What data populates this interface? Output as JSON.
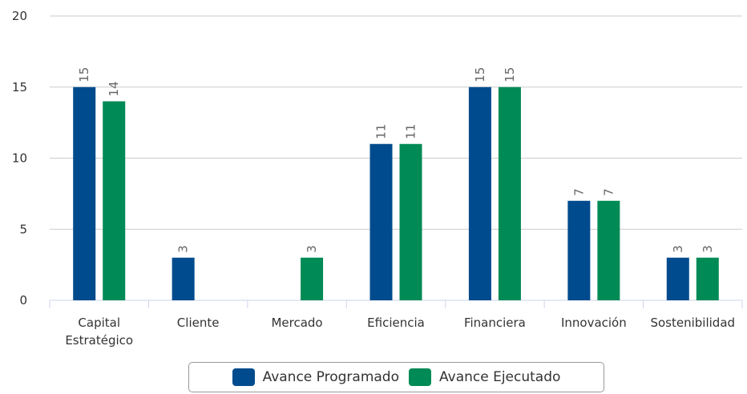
{
  "chart_data": {
    "type": "bar",
    "categories": [
      "Capital Estratégico",
      "Cliente",
      "Mercado",
      "Eficiencia",
      "Financiera",
      "Innovación",
      "Sostenibilidad"
    ],
    "series": [
      {
        "name": "Avance Programado",
        "color": "#004b8d",
        "values": [
          15,
          3,
          null,
          11,
          15,
          7,
          3
        ]
      },
      {
        "name": "Avance Ejecutado",
        "color": "#008a55",
        "values": [
          14,
          null,
          3,
          11,
          15,
          7,
          3
        ]
      }
    ],
    "ylim": [
      0,
      20
    ],
    "yticks": [
      0,
      5,
      10,
      15,
      20
    ],
    "grid": true
  }
}
